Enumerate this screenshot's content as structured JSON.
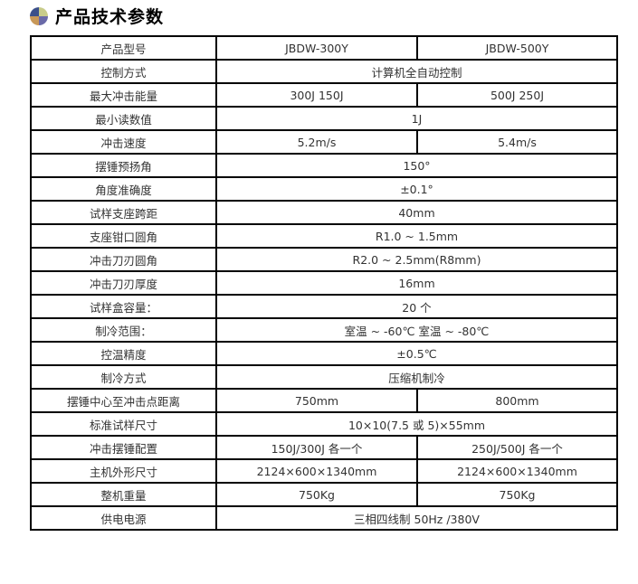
{
  "title": "产品技术参数",
  "logo_colors": [
    "#3b4f8a",
    "#c8cc8a",
    "#c89858",
    "#6a6aa8"
  ],
  "rows": [
    {
      "label": "产品型号",
      "values": [
        "JBDW-300Y",
        "JBDW-500Y"
      ]
    },
    {
      "label": "控制方式",
      "values": [
        "计算机全自动控制"
      ]
    },
    {
      "label": "最大冲击能量",
      "values": [
        "300J 150J",
        "500J 250J"
      ]
    },
    {
      "label": "最小读数值",
      "values": [
        "1J"
      ]
    },
    {
      "label": "冲击速度",
      "values": [
        "5.2m/s",
        "5.4m/s"
      ]
    },
    {
      "label": "摆锤预扬角",
      "values": [
        "150°"
      ]
    },
    {
      "label": "角度准确度",
      "values": [
        "±0.1°"
      ]
    },
    {
      "label": "试样支座跨距",
      "values": [
        "40mm"
      ]
    },
    {
      "label": "支座钳口圆角",
      "values": [
        "R1.0 ~ 1.5mm"
      ]
    },
    {
      "label": "冲击刀刃圆角",
      "values": [
        "R2.0 ~ 2.5mm(R8mm)"
      ]
    },
    {
      "label": "冲击刀刃厚度",
      "values": [
        "16mm"
      ]
    },
    {
      "label": "试样盒容量：",
      "values": [
        "20 个"
      ]
    },
    {
      "label": "制冷范围：",
      "values": [
        "室温 ~ -60℃  室温 ~ -80℃"
      ]
    },
    {
      "label": "控温精度",
      "values": [
        "±0.5℃"
      ]
    },
    {
      "label": "制冷方式",
      "values": [
        "压缩机制冷"
      ]
    },
    {
      "label": "摆锤中心至冲击点距离",
      "values": [
        "750mm",
        "800mm"
      ]
    },
    {
      "label": "标准试样尺寸",
      "values": [
        "10×10(7.5 或 5)×55mm"
      ]
    },
    {
      "label": "冲击摆锤配置",
      "values": [
        "150J/300J 各一个",
        "250J/500J 各一个"
      ]
    },
    {
      "label": "主机外形尺寸",
      "values": [
        "2124×600×1340mm",
        "2124×600×1340mm"
      ]
    },
    {
      "label": "整机重量",
      "values": [
        "750Kg",
        "750Kg"
      ]
    },
    {
      "label": "供电电源",
      "values": [
        "三相四线制 50Hz /380V"
      ]
    }
  ]
}
